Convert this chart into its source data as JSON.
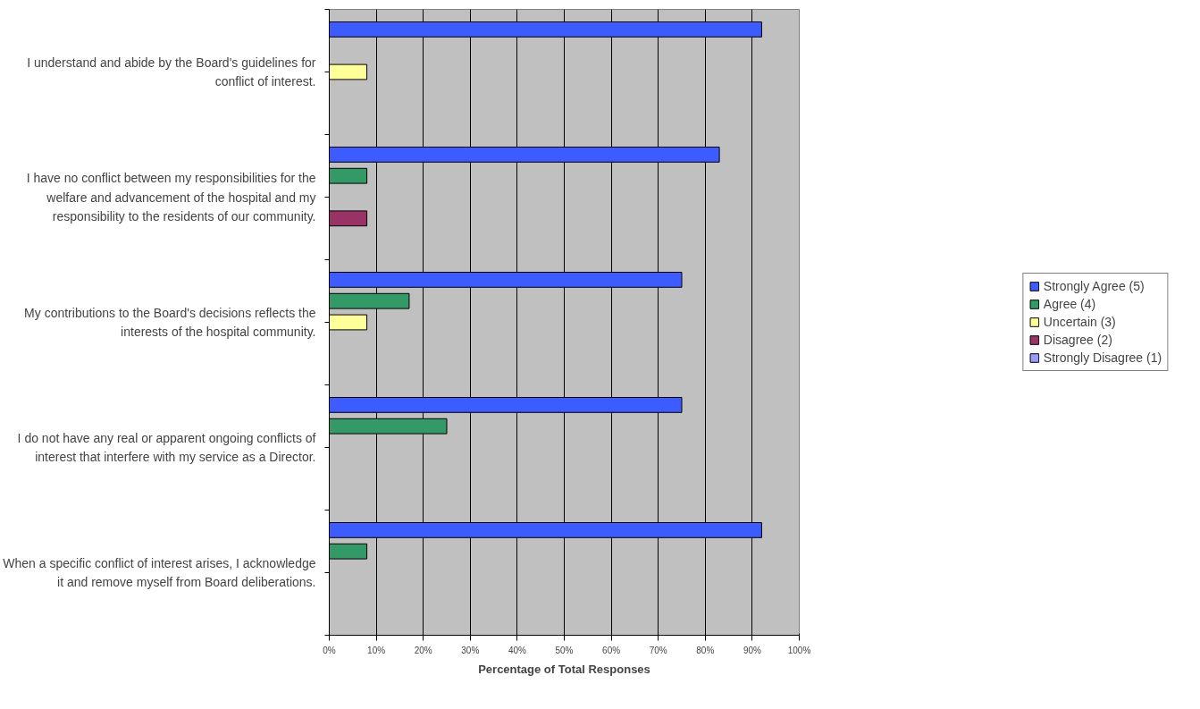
{
  "chart_data": {
    "type": "bar",
    "orientation": "horizontal",
    "xlabel": "Percentage of Total Responses",
    "categories": [
      "I understand and abide by the Board's guidelines for conflict of interest.",
      "I have no conflict between my responsibilities for the welfare and advancement of the hospital and my responsibility to the residents of our community.",
      "My contributions to the Board's decisions reflects the interests of the hospital community.",
      "I do not have any real or apparent ongoing conflicts of interest that interfere with my service as a Director.",
      "When a specific conflict of interest arises, I acknowledge it and remove myself from Board deliberations."
    ],
    "series": [
      {
        "name": "Strongly Agree (5)",
        "color": "#3d5cff",
        "values": [
          92,
          83,
          75,
          75,
          92
        ]
      },
      {
        "name": "Agree (4)",
        "color": "#339966",
        "values": [
          null,
          8,
          17,
          25,
          8
        ]
      },
      {
        "name": "Uncertain (3)",
        "color": "#ffff99",
        "values": [
          8,
          null,
          8,
          null,
          null
        ]
      },
      {
        "name": "Disagree (2)",
        "color": "#993366",
        "values": [
          null,
          8,
          null,
          null,
          null
        ]
      },
      {
        "name": "Strongly Disagree (1)",
        "color": "#9999ff",
        "values": [
          null,
          null,
          null,
          null,
          null
        ]
      }
    ],
    "xlim": [
      0,
      100
    ],
    "xticks": [
      {
        "value": 0,
        "label": "0%"
      },
      {
        "value": 10,
        "label": "10%"
      },
      {
        "value": 20,
        "label": "20%"
      },
      {
        "value": 30,
        "label": "30%"
      },
      {
        "value": 40,
        "label": "40%"
      },
      {
        "value": 50,
        "label": "50%"
      },
      {
        "value": 60,
        "label": "60%"
      },
      {
        "value": 70,
        "label": "70%"
      },
      {
        "value": 80,
        "label": "80%"
      },
      {
        "value": 90,
        "label": "90%"
      },
      {
        "value": 100,
        "label": "100%"
      }
    ],
    "grid": "x",
    "legend": "right"
  }
}
